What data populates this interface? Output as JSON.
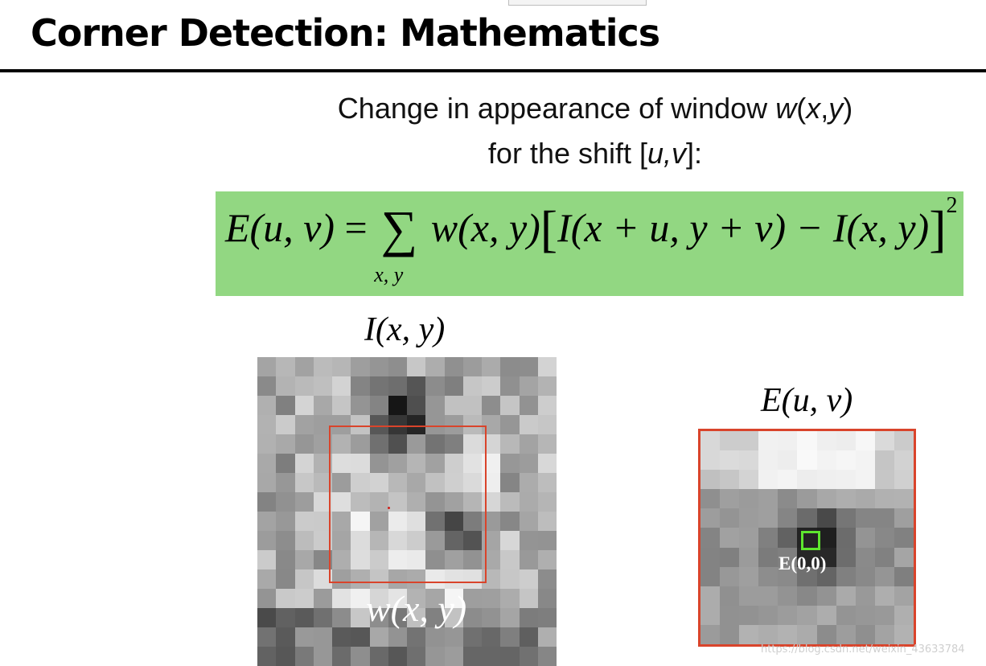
{
  "slide": {
    "title": "Corner Detection: Mathematics",
    "subtitle_line1_prefix": "Change in appearance of window ",
    "subtitle_line1_w": "w",
    "subtitle_line1_paren_open": "(",
    "subtitle_line1_x": "x",
    "subtitle_line1_comma": ",",
    "subtitle_line1_y": "y",
    "subtitle_line1_paren_close": ")",
    "subtitle_line2_prefix": "for the shift [",
    "subtitle_line2_uv": "u,v",
    "subtitle_line2_suffix": "]:",
    "watermark": "https://blog.csdn.net/weixin_43633784"
  },
  "formula": {
    "lhs_E": "E",
    "lhs_args": "(u, v)",
    "equals": " = ",
    "sum_symbol": "∑",
    "sum_subscript": "x, y",
    "w_term": "w(x, y)",
    "open_bracket": "[",
    "term1": "I(x + u, y + v) − I(x, y)",
    "close_bracket": "]",
    "exponent": "2",
    "box_color": "#92d782"
  },
  "image_panel": {
    "label_I": "I",
    "label_args": "(x, y)",
    "window_label": "w(x, y)",
    "window_color": "#d9442b"
  },
  "error_panel": {
    "label_E": "E",
    "label_args": "(u, v)",
    "center_label": "E(0,0)",
    "marker_color": "#5ee62e"
  }
}
